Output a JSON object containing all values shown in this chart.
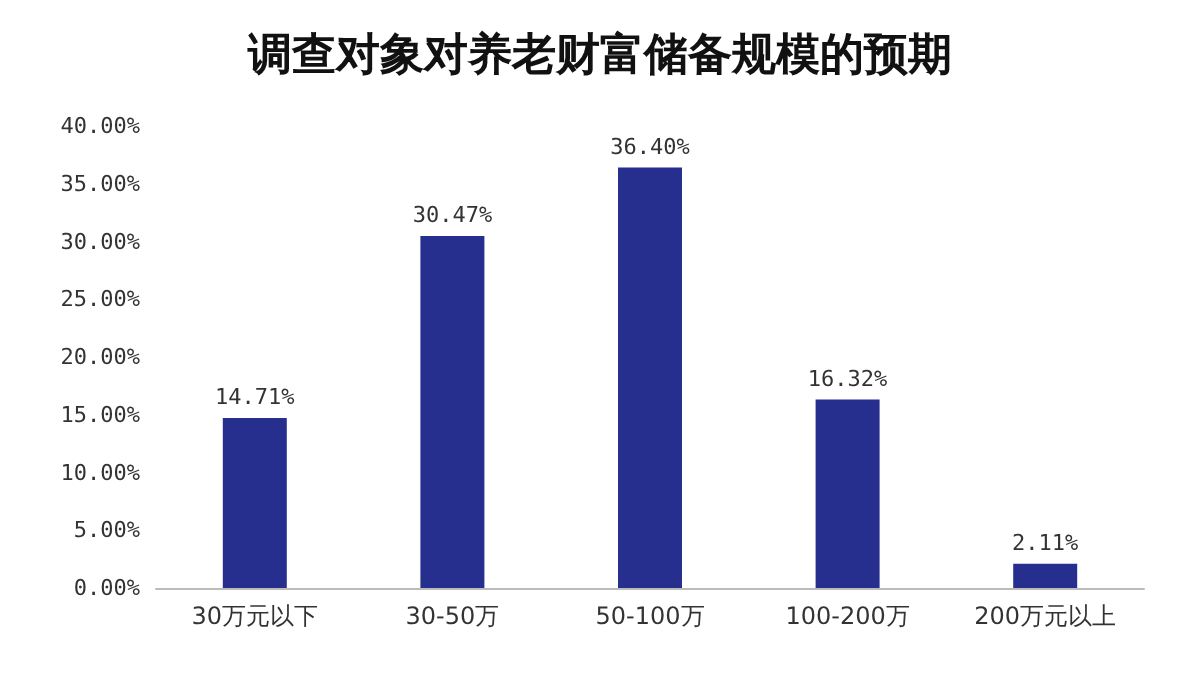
{
  "chart_data": {
    "type": "bar",
    "title": "调查对象对养老财富储备规模的预期",
    "categories": [
      "30万元以下",
      "30-50万",
      "50-100万",
      "100-200万",
      "200万元以上"
    ],
    "values": [
      14.71,
      30.47,
      36.4,
      16.32,
      2.11
    ],
    "value_labels": [
      "14.71%",
      "30.47%",
      "36.40%",
      "16.32%",
      "2.11%"
    ],
    "color": "#272f8e",
    "ylim": [
      0,
      40
    ],
    "yticks": [
      {
        "value": 0,
        "label": "0.00%"
      },
      {
        "value": 5,
        "label": "5.00%"
      },
      {
        "value": 10,
        "label": "10.00%"
      },
      {
        "value": 15,
        "label": "15.00%"
      },
      {
        "value": 20,
        "label": "20.00%"
      },
      {
        "value": 25,
        "label": "25.00%"
      },
      {
        "value": 30,
        "label": "30.00%"
      },
      {
        "value": 35,
        "label": "35.00%"
      },
      {
        "value": 40,
        "label": "40.00%"
      }
    ],
    "grid": false
  }
}
